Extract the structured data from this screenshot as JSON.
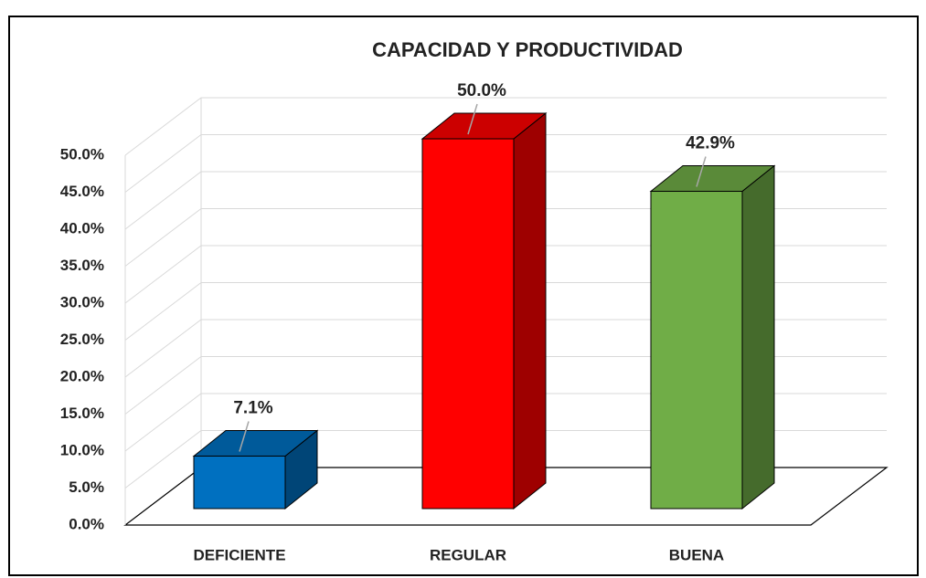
{
  "chart_data": {
    "type": "bar3d",
    "title": "CAPACIDAD Y PRODUCTIVIDAD",
    "categories": [
      "DEFICIENTE",
      "REGULAR",
      "BUENA"
    ],
    "values": [
      7.1,
      50.0,
      42.9
    ],
    "value_labels": [
      "7.1%",
      "50.0%",
      "42.9%"
    ],
    "colors": [
      "#0070c0",
      "#ff0000",
      "#70ad47"
    ],
    "ylim": [
      0,
      50
    ],
    "yticks": [
      {
        "value": 0,
        "label": "0.0%"
      },
      {
        "value": 5,
        "label": "5.0%"
      },
      {
        "value": 10,
        "label": "10.0%"
      },
      {
        "value": 15,
        "label": "15.0%"
      },
      {
        "value": 20,
        "label": "20.0%"
      },
      {
        "value": 25,
        "label": "25.0%"
      },
      {
        "value": 30,
        "label": "30.0%"
      },
      {
        "value": 35,
        "label": "35.0%"
      },
      {
        "value": 40,
        "label": "40.0%"
      },
      {
        "value": 45,
        "label": "45.0%"
      },
      {
        "value": 50,
        "label": "50.0%"
      }
    ],
    "grid": true
  }
}
